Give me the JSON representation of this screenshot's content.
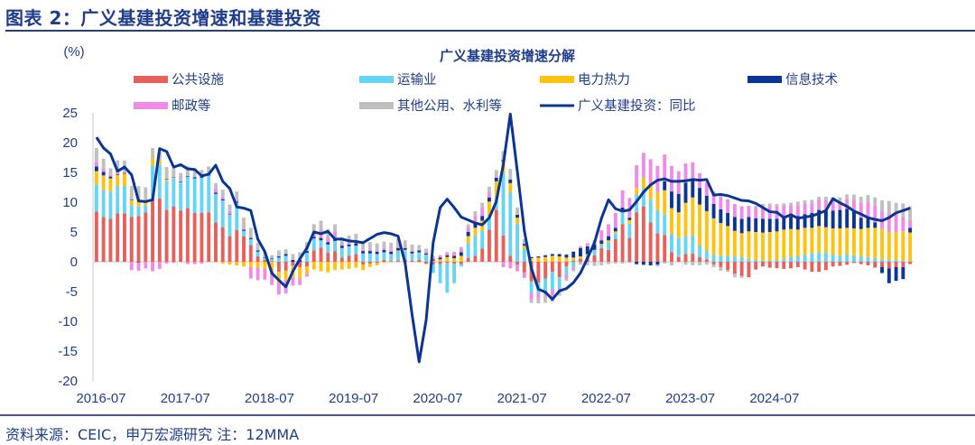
{
  "figure": {
    "title": "图表 2：广义基建投资增速和基建投资",
    "source": "资料来源：CEIC，申万宏源研究 注：12MMA"
  },
  "chart_data": {
    "type": "bar",
    "subtype": "stacked bar + line",
    "title": "广义基建投资增速分解",
    "ylabel": "(%)",
    "xlabel": "",
    "ylim": [
      -20,
      25
    ],
    "yticks": [
      25,
      20,
      15,
      10,
      5,
      0,
      -5,
      -10,
      -15,
      -20
    ],
    "x_tick_labels": [
      "2016-07",
      "2017-07",
      "2018-07",
      "2019-07",
      "2020-07",
      "2021-07",
      "2022-07",
      "2023-07",
      "2024-07"
    ],
    "x_start": "2016-07",
    "x_end": "2024-12",
    "legend_placement": "top",
    "grid": false,
    "series": [
      {
        "name": "公共设施",
        "kind": "bar",
        "color": "#e8605c",
        "values": [
          8.4,
          7.5,
          7.2,
          8.1,
          8.1,
          7.5,
          7.7,
          8.3,
          10.3,
          10.6,
          8.7,
          9.3,
          8.6,
          9.0,
          8.2,
          8.2,
          8.3,
          6.6,
          5.8,
          4.3,
          5.3,
          4.3,
          2.8,
          0.9,
          0.3,
          0.1,
          -1.7,
          -1.5,
          -0.6,
          -0.9,
          -0.8,
          1.9,
          2.4,
          1.5,
          1.8,
          0.7,
          1.0,
          1.3,
          -0.5,
          -0.3,
          -0.2,
          0.3,
          0.1,
          0.2,
          0.4,
          0.2,
          0.3,
          -0.3,
          -0.5,
          -0.4,
          -0.2,
          -0.3,
          -0.4,
          0.6,
          1.0,
          2.2,
          5.4,
          8.7,
          4.4,
          1.0,
          -0.5,
          -1.8,
          -3.3,
          -3.5,
          -2.8,
          -1.7,
          -2.6,
          -0.8,
          0.2,
          0.5,
          0.8,
          1.1,
          2.3,
          2.0,
          3.8,
          6.3,
          4.0,
          8.3,
          9.3,
          6.6,
          4.8,
          4.5,
          1.6,
          0.8,
          1.3,
          1.4,
          0.8,
          0.4,
          -0.5,
          -0.9,
          -1.4,
          -2.0,
          -2.4,
          -2.6,
          -1.3,
          -0.8,
          -1.0,
          -1.1,
          -1.2,
          -1.1,
          -0.9,
          -1.3,
          -1.7,
          -1.7,
          -1.4,
          -0.8,
          -0.7,
          -0.5,
          -0.2,
          -0.4,
          -0.6,
          -1.0,
          -0.9,
          -1.1,
          -0.9,
          -0.9,
          -0.4
        ]
      },
      {
        "name": "运输业",
        "kind": "bar",
        "color": "#66d4f5",
        "values": [
          4.6,
          4.6,
          4.6,
          4.6,
          4.6,
          2.0,
          1.6,
          1.2,
          5.9,
          5.7,
          4.8,
          4.7,
          4.8,
          5.3,
          5.8,
          5.9,
          6.2,
          4.8,
          4.5,
          3.6,
          4.6,
          0.9,
          1.0,
          0.8,
          0.3,
          0.4,
          0.7,
          1.0,
          -0.2,
          0.0,
          1.5,
          2.0,
          1.2,
          1.4,
          1.7,
          1.6,
          1.6,
          1.4,
          1.4,
          1.4,
          1.3,
          1.3,
          1.2,
          1.6,
          1.4,
          1.1,
          1.3,
          1.2,
          -1.4,
          -3.2,
          -5.0,
          -3.3,
          -0.4,
          2.5,
          3.4,
          3.0,
          2.5,
          2.2,
          10.5,
          10.6,
          6.4,
          2.2,
          -2.0,
          -1.8,
          -2.0,
          -3.0,
          -1.8,
          -1.4,
          -1.0,
          0.0,
          0.3,
          0.8,
          0.5,
          1.3,
          1.0,
          2.0,
          2.4,
          2.9,
          3.0,
          3.8,
          3.9,
          3.5,
          3.1,
          3.2,
          3.0,
          3.0,
          2.0,
          1.5,
          1.2,
          1.0,
          1.0,
          0.9,
          0.8,
          0.5,
          0.3,
          0.2,
          0.2,
          0.3,
          0.5,
          0.8,
          0.9,
          1.2,
          1.4,
          1.6,
          1.5,
          1.2,
          1.0,
          1.3,
          1.1,
          0.9,
          0.8,
          0.6,
          0.4,
          0.3,
          0.3,
          0.2,
          0.1
        ]
      },
      {
        "name": "电力热力",
        "kind": "bar",
        "color": "#ffc20e",
        "values": [
          2.2,
          2.4,
          2.2,
          1.9,
          2.1,
          0.8,
          1.6,
          0.9,
          1.2,
          0.8,
          0.3,
          0.1,
          0.0,
          0.0,
          0.0,
          0.0,
          0.0,
          -0.1,
          -0.3,
          -0.5,
          -0.6,
          -0.8,
          -0.9,
          -1.0,
          -1.2,
          -1.5,
          -1.8,
          -1.6,
          -1.8,
          -1.9,
          -1.2,
          -1.3,
          -1.6,
          -1.8,
          -1.4,
          -1.3,
          -1.2,
          -1.0,
          -0.9,
          -0.6,
          -0.4,
          -0.2,
          -0.1,
          0.1,
          0.2,
          0.1,
          -0.1,
          -0.1,
          0.2,
          0.4,
          0.8,
          0.6,
          1.0,
          1.2,
          1.3,
          1.7,
          2.2,
          2.6,
          1.9,
          1.6,
          1.0,
          0.5,
          0.6,
          0.7,
          0.8,
          1.0,
          0.9,
          0.7,
          0.5,
          0.4,
          0.2,
          0.1,
          0.2,
          0.3,
          0.3,
          0.3,
          0.6,
          1.2,
          1.8,
          2.5,
          3.0,
          4.0,
          4.3,
          4.3,
          5.6,
          6.4,
          6.8,
          6.6,
          6.1,
          5.5,
          5.0,
          4.3,
          4.0,
          4.6,
          4.7,
          4.7,
          4.8,
          4.8,
          4.9,
          4.7,
          4.5,
          4.5,
          4.3,
          4.4,
          4.3,
          4.4,
          4.6,
          4.4,
          4.5,
          4.6,
          4.9,
          5.1,
          5.1,
          4.7,
          4.7,
          4.9,
          4.8
        ]
      },
      {
        "name": "信息技术",
        "kind": "bar",
        "color": "#0b3592",
        "values": [
          0.8,
          0.6,
          0.3,
          0.1,
          0.1,
          0.1,
          -0.1,
          0.0,
          0.0,
          0.0,
          0.1,
          0.1,
          0.1,
          0.1,
          0.2,
          0.2,
          0.3,
          0.2,
          0.2,
          0.1,
          0.2,
          0.2,
          0.2,
          0.2,
          0.1,
          0.1,
          0.2,
          0.3,
          0.3,
          0.3,
          0.3,
          0.3,
          0.4,
          0.4,
          0.4,
          0.4,
          0.3,
          0.4,
          0.4,
          0.4,
          0.4,
          0.4,
          0.4,
          0.4,
          0.3,
          0.3,
          0.3,
          0.2,
          0.2,
          0.3,
          0.3,
          0.4,
          0.6,
          0.7,
          0.8,
          0.8,
          0.7,
          0.6,
          0.3,
          0.6,
          0.5,
          0.3,
          0.2,
          0.2,
          0.3,
          0.3,
          0.4,
          0.5,
          1.0,
          1.4,
          1.3,
          0.9,
          0.6,
          0.7,
          0.6,
          0.5,
          0.4,
          -0.4,
          -0.5,
          -0.6,
          -0.5,
          1.5,
          2.8,
          3.1,
          3.4,
          3.0,
          2.8,
          2.6,
          2.4,
          2.3,
          2.2,
          2.3,
          2.4,
          2.4,
          2.3,
          2.3,
          2.2,
          2.1,
          2.0,
          2.1,
          2.3,
          2.3,
          2.5,
          2.7,
          2.9,
          3.0,
          3.1,
          3.2,
          2.8,
          1.9,
          1.6,
          0.9,
          -1.0,
          -2.5,
          -2.3,
          -2.0,
          0.8
        ]
      },
      {
        "name": "邮政等",
        "kind": "bar",
        "color": "#ef8ae8",
        "values": [
          0.8,
          0.6,
          0.3,
          0.2,
          0.1,
          -1.4,
          -1.4,
          -1.1,
          -1.6,
          -1.2,
          -0.3,
          -0.2,
          0.1,
          -0.4,
          -0.4,
          -0.3,
          0.2,
          0.6,
          0.5,
          0.5,
          0.3,
          0.1,
          -1.9,
          -2.1,
          -1.8,
          -2.4,
          -2.0,
          -2.2,
          -1.4,
          -1.1,
          -0.5,
          0.4,
          1.3,
          0.9,
          1.2,
          0.4,
          0.3,
          0.3,
          0.2,
          0.3,
          0.2,
          0.3,
          0.3,
          0.2,
          0.2,
          0.2,
          0.1,
          0.3,
          0.4,
          0.4,
          0.5,
          0.6,
          0.6,
          0.8,
          1.2,
          1.3,
          0.8,
          0.2,
          -0.9,
          -1.1,
          -1.1,
          -0.9,
          -1.0,
          -0.9,
          -0.9,
          -1.0,
          -0.7,
          -0.6,
          -0.3,
          0.3,
          0.5,
          0.7,
          1.7,
          2.0,
          2.5,
          2.9,
          3.3,
          3.8,
          4.2,
          4.3,
          4.4,
          4.5,
          4.3,
          3.8,
          3.2,
          2.9,
          2.5,
          2.3,
          2.1,
          2.2,
          2.3,
          2.2,
          2.1,
          1.9,
          1.9,
          2.0,
          2.1,
          2.1,
          2.0,
          1.8,
          1.8,
          1.8,
          1.7,
          1.7,
          1.6,
          1.6,
          1.5,
          1.6,
          2.0,
          2.5,
          2.7,
          2.9,
          3.0,
          3.1,
          2.9,
          2.5,
          1.3
        ]
      },
      {
        "name": "其他公用、水利等",
        "kind": "bar",
        "color": "#bfbfbf",
        "values": [
          2.3,
          1.6,
          1.1,
          2.1,
          2.0,
          2.3,
          1.8,
          2.1,
          1.7,
          1.4,
          2.0,
          1.6,
          1.3,
          1.6,
          1.4,
          1.1,
          1.0,
          1.0,
          1.1,
          1.1,
          1.4,
          1.9,
          1.7,
          1.3,
          0.9,
          0.5,
          1.0,
          0.8,
          1.0,
          1.3,
          1.5,
          1.7,
          1.6,
          1.3,
          1.2,
          1.0,
          1.2,
          1.3,
          1.1,
          1.2,
          1.2,
          1.1,
          1.2,
          1.4,
          1.1,
          1.0,
          0.8,
          0.5,
          0.2,
          0.0,
          0.0,
          0.1,
          0.3,
          0.5,
          0.8,
          0.9,
          1.0,
          1.1,
          1.5,
          1.8,
          1.2,
          0.8,
          -0.6,
          -0.8,
          -1.2,
          -1.0,
          -0.6,
          -0.4,
          -0.3,
          -0.5,
          -0.6,
          -0.7,
          -0.6,
          -0.4,
          -0.3,
          -0.3,
          -0.2,
          -0.1,
          -0.1,
          0.0,
          -0.3,
          -0.3,
          -0.6,
          0.0,
          -0.5,
          -0.6,
          -0.6,
          -0.5,
          -0.4,
          -0.6,
          -0.3,
          -0.6,
          -0.3,
          0.0,
          0.2,
          0.5,
          0.5,
          0.4,
          0.4,
          0.5,
          0.6,
          0.5,
          0.5,
          0.5,
          0.6,
          0.6,
          0.6,
          0.8,
          0.9,
          1.0,
          1.2,
          1.3,
          1.8,
          2.1,
          2.0,
          2.2,
          2.3
        ]
      },
      {
        "name": "广义基建投资：同比",
        "kind": "line",
        "color": "#0b3592",
        "values": [
          20.9,
          19.1,
          18.1,
          15.2,
          15.9,
          14.6,
          10.2,
          10.1,
          10.4,
          19.0,
          18.5,
          15.9,
          16.3,
          15.6,
          15.5,
          14.4,
          14.7,
          16.2,
          13.5,
          12.3,
          9.2,
          9.0,
          8.6,
          3.8,
          1.7,
          -1.9,
          -3.1,
          -4.2,
          -1.6,
          0.5,
          2.3,
          5.0,
          4.7,
          5.1,
          3.8,
          3.8,
          3.5,
          3.4,
          3.2,
          3.9,
          4.6,
          4.9,
          4.7,
          4.3,
          -0.2,
          -8.9,
          -16.8,
          -9.8,
          3.2,
          9.1,
          10.5,
          9.1,
          7.5,
          7.0,
          6.5,
          6.2,
          7.4,
          10.1,
          16.3,
          24.8,
          15.2,
          5.2,
          -1.1,
          -4.6,
          -5.1,
          -6.3,
          -4.9,
          -4.5,
          -3.5,
          -1.9,
          0.6,
          3.2,
          7.3,
          10.4,
          8.9,
          8.5,
          8.7,
          10.1,
          11.7,
          12.9,
          13.7,
          13.9,
          13.5,
          13.5,
          13.6,
          13.8,
          13.7,
          13.8,
          11.2,
          11.3,
          11.1,
          10.7,
          10.3,
          10.2,
          9.8,
          9.1,
          8.4,
          8.3,
          7.4,
          7.9,
          7.3,
          7.5,
          7.7,
          8.1,
          8.6,
          10.6,
          9.9,
          9.3,
          8.5,
          8.0,
          7.4,
          7.1,
          6.9,
          7.4,
          8.2,
          8.6,
          9.0
        ]
      }
    ]
  }
}
